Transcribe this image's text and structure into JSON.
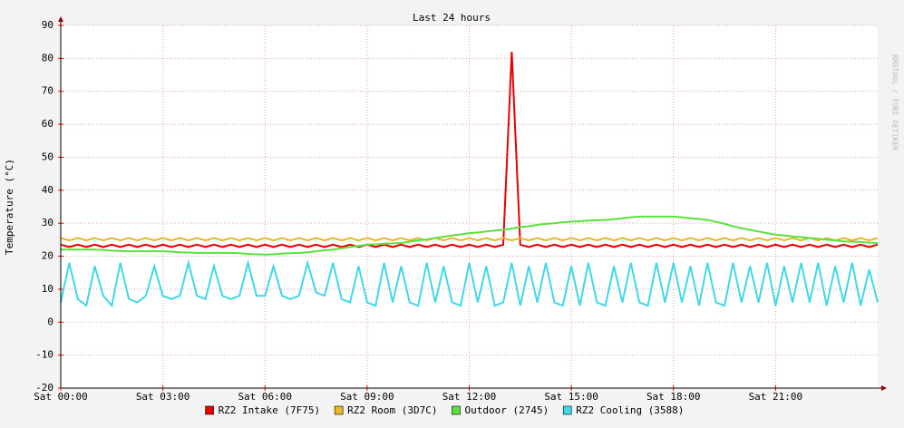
{
  "chart_data": {
    "type": "line",
    "title": "Last 24 hours",
    "y_label": "Temperature (°C)",
    "watermark": "RRDTOOL / TOBI OETIKER",
    "x": [
      0,
      0.25,
      0.5,
      0.75,
      1,
      1.25,
      1.5,
      1.75,
      2,
      2.25,
      2.5,
      2.75,
      3,
      3.25,
      3.5,
      3.75,
      4,
      4.25,
      4.5,
      4.75,
      5,
      5.25,
      5.5,
      5.75,
      6,
      6.25,
      6.5,
      6.75,
      7,
      7.25,
      7.5,
      7.75,
      8,
      8.25,
      8.5,
      8.75,
      9,
      9.25,
      9.5,
      9.75,
      10,
      10.25,
      10.5,
      10.75,
      11,
      11.25,
      11.5,
      11.75,
      12,
      12.25,
      12.5,
      12.75,
      13,
      13.25,
      13.5,
      13.75,
      14,
      14.25,
      14.5,
      14.75,
      15,
      15.25,
      15.5,
      15.75,
      16,
      16.25,
      16.5,
      16.75,
      17,
      17.25,
      17.5,
      17.75,
      18,
      18.25,
      18.5,
      18.75,
      19,
      19.25,
      19.5,
      19.75,
      20,
      20.25,
      20.5,
      20.75,
      21,
      21.25,
      21.5,
      21.75,
      22,
      22.25,
      22.5,
      22.75,
      23,
      23.25,
      23.5,
      23.75,
      24
    ],
    "xlim": [
      0,
      24
    ],
    "xticks": [
      {
        "value": 0,
        "label": "Sat 00:00"
      },
      {
        "value": 3,
        "label": "Sat 03:00"
      },
      {
        "value": 6,
        "label": "Sat 06:00"
      },
      {
        "value": 9,
        "label": "Sat 09:00"
      },
      {
        "value": 12,
        "label": "Sat 12:00"
      },
      {
        "value": 15,
        "label": "Sat 15:00"
      },
      {
        "value": 18,
        "label": "Sat 18:00"
      },
      {
        "value": 21,
        "label": "Sat 21:00"
      }
    ],
    "ylim": [
      -20,
      90
    ],
    "yticks": [
      -20,
      -10,
      0,
      10,
      20,
      30,
      40,
      50,
      60,
      70,
      80,
      90
    ],
    "grid": true,
    "series": [
      {
        "name": "RZ2 Intake (7F75)",
        "color": "#e80000",
        "values": [
          23.5,
          22.8,
          23.5,
          22.8,
          23.5,
          22.8,
          23.5,
          22.8,
          23.5,
          22.8,
          23.5,
          22.8,
          23.5,
          22.8,
          23.5,
          22.8,
          23.5,
          22.8,
          23.5,
          22.8,
          23.5,
          22.8,
          23.5,
          22.8,
          23.5,
          22.8,
          23.5,
          22.8,
          23.5,
          22.8,
          23.5,
          22.8,
          23.5,
          22.8,
          23.5,
          22.8,
          23.5,
          22.8,
          23.5,
          22.8,
          23.5,
          22.8,
          23.5,
          22.8,
          23.5,
          22.8,
          23.5,
          22.8,
          23.5,
          22.8,
          23.5,
          22.8,
          23.5,
          82,
          23.5,
          22.8,
          23.5,
          22.8,
          23.5,
          22.8,
          23.5,
          22.8,
          23.5,
          22.8,
          23.5,
          22.8,
          23.5,
          22.8,
          23.5,
          22.8,
          23.5,
          22.8,
          23.5,
          22.8,
          23.5,
          22.8,
          23.5,
          22.8,
          23.5,
          22.8,
          23.5,
          22.8,
          23.5,
          22.8,
          23.5,
          22.8,
          23.5,
          22.8,
          23.5,
          22.8,
          23.5,
          22.8,
          23.5,
          22.8,
          23.5,
          22.8,
          23.5
        ]
      },
      {
        "name": "RZ2 Room (3D7C)",
        "color": "#e8b820",
        "values": [
          25.5,
          24.8,
          25.5,
          24.8,
          25.5,
          24.8,
          25.5,
          24.8,
          25.5,
          24.8,
          25.5,
          24.8,
          25.5,
          24.8,
          25.5,
          24.8,
          25.5,
          24.8,
          25.5,
          24.8,
          25.5,
          24.8,
          25.5,
          24.8,
          25.5,
          24.8,
          25.5,
          24.8,
          25.5,
          24.8,
          25.5,
          24.8,
          25.5,
          24.8,
          25.5,
          24.8,
          25.5,
          24.8,
          25.5,
          24.8,
          25.5,
          24.8,
          25.5,
          24.8,
          25.5,
          24.8,
          25.5,
          24.8,
          25.5,
          24.8,
          25.5,
          24.8,
          25.5,
          24.8,
          25.5,
          24.8,
          25.5,
          24.8,
          25.5,
          24.8,
          25.5,
          24.8,
          25.5,
          24.8,
          25.5,
          24.8,
          25.5,
          24.8,
          25.5,
          24.8,
          25.5,
          24.8,
          25.5,
          24.8,
          25.5,
          24.8,
          25.5,
          24.8,
          25.5,
          24.8,
          25.5,
          24.8,
          25.5,
          24.8,
          25.5,
          24.8,
          25.5,
          24.8,
          25.5,
          24.8,
          25.5,
          24.8,
          25.5,
          24.8,
          25.5,
          24.8,
          25.5
        ]
      },
      {
        "name": "Outdoor (2745)",
        "color": "#5ce040",
        "values": [
          22,
          22,
          22,
          22,
          22,
          21.9,
          21.7,
          21.6,
          21.5,
          21.5,
          21.5,
          21.5,
          21.5,
          21.4,
          21.2,
          21.1,
          21,
          21,
          21,
          21,
          21,
          20.9,
          20.7,
          20.6,
          20.5,
          20.6,
          20.8,
          20.9,
          21,
          21.2,
          21.5,
          21.8,
          22,
          22.4,
          22.8,
          23.1,
          23.5,
          23.6,
          23.8,
          23.9,
          24,
          24.4,
          24.8,
          25.1,
          25.5,
          25.9,
          26.3,
          26.6,
          27,
          27.2,
          27.5,
          27.8,
          28,
          28.4,
          28.8,
          29.1,
          29.5,
          29.8,
          30,
          30.3,
          30.5,
          30.6,
          30.8,
          30.9,
          31,
          31.2,
          31.5,
          31.8,
          32,
          32,
          32,
          32,
          32,
          31.8,
          31.5,
          31.3,
          31,
          30.4,
          29.8,
          29.1,
          28.5,
          28,
          27.5,
          27,
          26.5,
          26.3,
          26,
          25.8,
          25.5,
          25.3,
          25,
          24.8,
          24.5,
          24.4,
          24.3,
          24.1,
          24
        ]
      },
      {
        "name": "RZ2 Cooling (3588)",
        "color": "#40d8e8",
        "values": [
          6,
          18,
          7,
          5,
          17,
          8,
          5,
          18,
          7,
          6,
          8,
          17,
          8,
          7,
          8,
          18,
          8,
          7,
          17,
          8,
          7,
          8,
          18,
          8,
          8,
          17,
          8,
          7,
          8,
          18,
          9,
          8,
          18,
          7,
          6,
          17,
          6,
          5,
          18,
          6,
          17,
          6,
          5,
          18,
          6,
          17,
          6,
          5,
          18,
          6,
          17,
          5,
          6,
          18,
          5,
          17,
          6,
          18,
          6,
          5,
          17,
          5,
          18,
          6,
          5,
          17,
          6,
          18,
          6,
          5,
          18,
          6,
          18,
          6,
          17,
          5,
          18,
          6,
          5,
          18,
          6,
          17,
          6,
          18,
          5,
          17,
          6,
          18,
          6,
          18,
          5,
          17,
          6,
          18,
          5,
          16,
          6
        ]
      }
    ]
  }
}
